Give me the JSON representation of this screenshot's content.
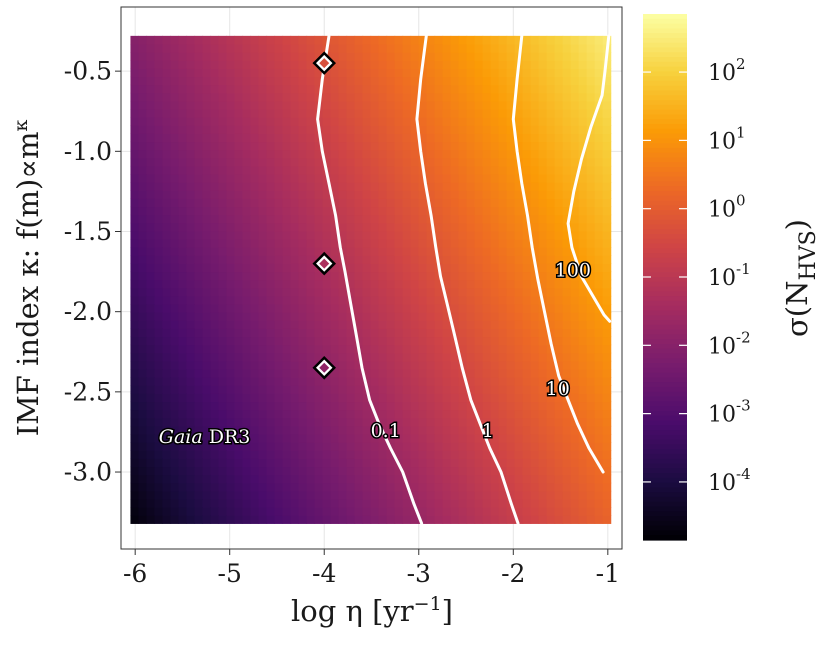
{
  "chart_data": {
    "type": "heatmap",
    "xlabel": "log η [yr",
    "xlabel_sup": "−1",
    "xlabel_close": "]",
    "ylabel": "IMF index κ: f(m)∝m",
    "ylabel_sup": "κ",
    "colorbar_label": "σ(N",
    "colorbar_label_sub": "HVS",
    "colorbar_label_close": ")",
    "colormap": [
      "#000004",
      "#1b0c41",
      "#4a0c6b",
      "#781c6d",
      "#a52c60",
      "#cf4446",
      "#ed6925",
      "#fb9b06",
      "#f7d13d",
      "#fcffa4"
    ],
    "xlim": [
      -6.15,
      -0.85
    ],
    "ylim": [
      -3.48,
      -0.1
    ],
    "data_extent": {
      "x": [
        -6.05,
        -0.97
      ],
      "y": [
        -3.32,
        -0.28
      ]
    },
    "x_ticks": [
      {
        "value": -6,
        "label": "-6"
      },
      {
        "value": -5,
        "label": "-5"
      },
      {
        "value": -4,
        "label": "-4"
      },
      {
        "value": -3,
        "label": "-3"
      },
      {
        "value": -2,
        "label": "-2"
      },
      {
        "value": -1,
        "label": "-1"
      }
    ],
    "y_ticks": [
      {
        "value": -0.5,
        "label": "-0.5"
      },
      {
        "value": -1.0,
        "label": "-1.0"
      },
      {
        "value": -1.5,
        "label": "-1.5"
      },
      {
        "value": -2.0,
        "label": "-2.0"
      },
      {
        "value": -2.5,
        "label": "-2.5"
      },
      {
        "value": -3.0,
        "label": "-3.0"
      }
    ],
    "colorbar": {
      "scale": "log",
      "range": [
        -4.85,
        2.85
      ],
      "ticks": [
        {
          "value": 2,
          "base": "10",
          "exp": "2"
        },
        {
          "value": 1,
          "base": "10",
          "exp": "1"
        },
        {
          "value": 0,
          "base": "10",
          "exp": "0"
        },
        {
          "value": -1,
          "base": "10",
          "exp": "-1"
        },
        {
          "value": -2,
          "base": "10",
          "exp": "-2"
        },
        {
          "value": -3,
          "base": "10",
          "exp": "-3"
        },
        {
          "value": -4,
          "base": "10",
          "exp": "-4"
        }
      ]
    },
    "field": {
      "corner_min": -4.8,
      "corner_max": 2.5,
      "x_weight": 1.06,
      "y_weight": 0.56
    },
    "contours": [
      {
        "level": "0.1",
        "label": "0.1",
        "label_pos": [
          -3.35,
          -2.75
        ],
        "points": [
          [
            -3.95,
            -0.28
          ],
          [
            -4.02,
            -0.55
          ],
          [
            -4.07,
            -0.8
          ],
          [
            -4.02,
            -1.0
          ],
          [
            -3.95,
            -1.2
          ],
          [
            -3.88,
            -1.4
          ],
          [
            -3.83,
            -1.6
          ],
          [
            -3.78,
            -1.75
          ],
          [
            -3.72,
            -1.95
          ],
          [
            -3.66,
            -2.15
          ],
          [
            -3.6,
            -2.35
          ],
          [
            -3.52,
            -2.55
          ],
          [
            -3.42,
            -2.7
          ],
          [
            -3.3,
            -2.85
          ],
          [
            -3.17,
            -3.0
          ],
          [
            -3.05,
            -3.2
          ],
          [
            -2.97,
            -3.32
          ]
        ]
      },
      {
        "level": "1",
        "label": "1",
        "label_pos": [
          -2.27,
          -2.75
        ],
        "points": [
          [
            -2.92,
            -0.28
          ],
          [
            -2.98,
            -0.55
          ],
          [
            -3.02,
            -0.8
          ],
          [
            -2.98,
            -1.0
          ],
          [
            -2.93,
            -1.2
          ],
          [
            -2.87,
            -1.4
          ],
          [
            -2.82,
            -1.6
          ],
          [
            -2.77,
            -1.78
          ],
          [
            -2.7,
            -1.95
          ],
          [
            -2.62,
            -2.15
          ],
          [
            -2.54,
            -2.35
          ],
          [
            -2.45,
            -2.55
          ],
          [
            -2.35,
            -2.7
          ],
          [
            -2.25,
            -2.85
          ],
          [
            -2.13,
            -3.0
          ],
          [
            -2.02,
            -3.2
          ],
          [
            -1.95,
            -3.32
          ]
        ]
      },
      {
        "level": "10",
        "label": "10",
        "label_pos": [
          -1.53,
          -2.49
        ],
        "points": [
          [
            -1.91,
            -0.28
          ],
          [
            -1.96,
            -0.55
          ],
          [
            -2.0,
            -0.8
          ],
          [
            -1.96,
            -1.0
          ],
          [
            -1.91,
            -1.2
          ],
          [
            -1.85,
            -1.4
          ],
          [
            -1.8,
            -1.6
          ],
          [
            -1.74,
            -1.8
          ],
          [
            -1.67,
            -2.0
          ],
          [
            -1.6,
            -2.2
          ],
          [
            -1.52,
            -2.4
          ],
          [
            -1.42,
            -2.55
          ],
          [
            -1.32,
            -2.7
          ],
          [
            -1.2,
            -2.85
          ],
          [
            -1.05,
            -3.0
          ]
        ]
      },
      {
        "level": "100",
        "label": "100",
        "label_pos": [
          -1.37,
          -1.75
        ],
        "points": [
          [
            -0.99,
            -0.28
          ],
          [
            -1.03,
            -0.5
          ],
          [
            -1.06,
            -0.65
          ],
          [
            -1.18,
            -0.85
          ],
          [
            -1.28,
            -1.05
          ],
          [
            -1.36,
            -1.25
          ],
          [
            -1.42,
            -1.45
          ],
          [
            -1.38,
            -1.6
          ],
          [
            -1.28,
            -1.78
          ],
          [
            -1.16,
            -1.9
          ],
          [
            -1.04,
            -2.02
          ],
          [
            -0.98,
            -2.06
          ]
        ]
      }
    ],
    "markers": [
      {
        "x": -4.0,
        "y": -0.45
      },
      {
        "x": -4.0,
        "y": -1.7
      },
      {
        "x": -4.0,
        "y": -2.35
      }
    ],
    "annotation": {
      "italic": "Gaia",
      "rest": " DR3",
      "pos": [
        -5.75,
        -2.82
      ]
    }
  }
}
